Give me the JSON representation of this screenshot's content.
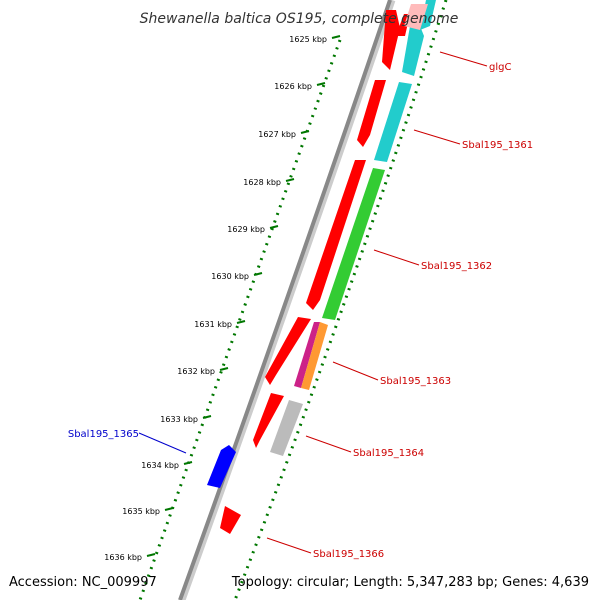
{
  "title": "Shewanella baltica OS195, complete genome",
  "footer": {
    "accession": "Accession: NC_009997",
    "summary": "Topology: circular; Length: 5,347,283 bp; Genes: 4,639"
  },
  "ticks": [
    {
      "label": "1625 kbp",
      "kbp": 1625
    },
    {
      "label": "1626 kbp",
      "kbp": 1626
    },
    {
      "label": "1627 kbp",
      "kbp": 1627
    },
    {
      "label": "1628 kbp",
      "kbp": 1628
    },
    {
      "label": "1629 kbp",
      "kbp": 1629
    },
    {
      "label": "1630 kbp",
      "kbp": 1630
    },
    {
      "label": "1631 kbp",
      "kbp": 1631
    },
    {
      "label": "1632 kbp",
      "kbp": 1632
    },
    {
      "label": "1633 kbp",
      "kbp": 1633
    },
    {
      "label": "1634 kbp",
      "kbp": 1634
    },
    {
      "label": "1635 kbp",
      "kbp": 1635
    },
    {
      "label": "1636 kbp",
      "kbp": 1636
    }
  ],
  "genes": [
    {
      "label": "glgC",
      "strand": "forward",
      "color": "#cc0000"
    },
    {
      "label": "Sbal195_1361",
      "strand": "forward",
      "color": "#cc0000"
    },
    {
      "label": "Sbal195_1362",
      "strand": "forward",
      "color": "#cc0000"
    },
    {
      "label": "Sbal195_1363",
      "strand": "forward",
      "color": "#cc0000"
    },
    {
      "label": "Sbal195_1364",
      "strand": "forward",
      "color": "#cc0000"
    },
    {
      "label": "Sbal195_1365",
      "strand": "reverse",
      "color": "#0000cc"
    },
    {
      "label": "Sbal195_1366",
      "strand": "forward",
      "color": "#cc0000"
    }
  ],
  "colors": {
    "cds": "#ff0000",
    "cds_reverse": "#0000ff",
    "tick_dotted": "#007700",
    "backbone": "#888888",
    "feature_cyan": "#22cccc",
    "feature_green": "#33cc33",
    "feature_gray": "#bbbbbb",
    "feature_pink": "#ffbbbb",
    "feature_magenta": "#cc2288",
    "feature_orange": "#ff9933"
  }
}
